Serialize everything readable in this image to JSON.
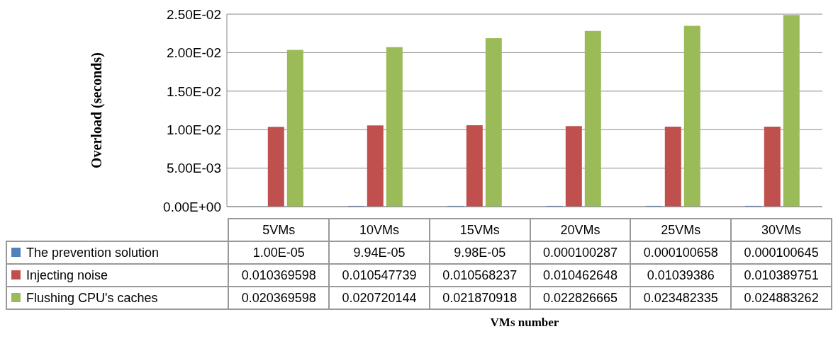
{
  "chart_data": {
    "type": "bar",
    "annotations": [
      "VMs number"
    ],
    "ylabel": "Overload (seconds)",
    "categories": [
      "5VMs",
      "10VMs",
      "15VMs",
      "20VMs",
      "25VMs",
      "30VMs"
    ],
    "series": [
      {
        "name": "The prevention solution",
        "color": "#4f81bd",
        "values": [
          1e-05,
          9.94e-05,
          9.98e-05,
          0.000100287,
          0.000100658,
          0.000100645
        ],
        "value_labels": [
          "1.00E-05",
          "9.94E-05",
          "9.98E-05",
          "0.000100287",
          "0.000100658",
          "0.000100645"
        ]
      },
      {
        "name": "Injecting noise",
        "color": "#c0504d",
        "values": [
          0.010369598,
          0.010547739,
          0.010568237,
          0.010462648,
          0.01039386,
          0.010389751
        ],
        "value_labels": [
          "0.010369598",
          "0.010547739",
          "0.010568237",
          "0.010462648",
          "0.01039386",
          "0.010389751"
        ]
      },
      {
        "name": "Flushing  CPU's caches",
        "color": "#9bbb59",
        "values": [
          0.020369598,
          0.020720144,
          0.021870918,
          0.022826665,
          0.023482335,
          0.024883262
        ],
        "value_labels": [
          "0.020369598",
          "0.020720144",
          "0.021870918",
          "0.022826665",
          "0.023482335",
          "0.024883262"
        ]
      }
    ],
    "ylim": [
      0,
      0.025
    ],
    "yticks": [
      {
        "value": 0,
        "label": "0.00E+00"
      },
      {
        "value": 0.005,
        "label": "5.00E-03"
      },
      {
        "value": 0.01,
        "label": "1.00E-02"
      },
      {
        "value": 0.015,
        "label": "1.50E-02"
      },
      {
        "value": 0.02,
        "label": "2.00E-02"
      },
      {
        "value": 0.025,
        "label": "2.50E-02"
      }
    ],
    "grid": "y",
    "legend": "left"
  }
}
